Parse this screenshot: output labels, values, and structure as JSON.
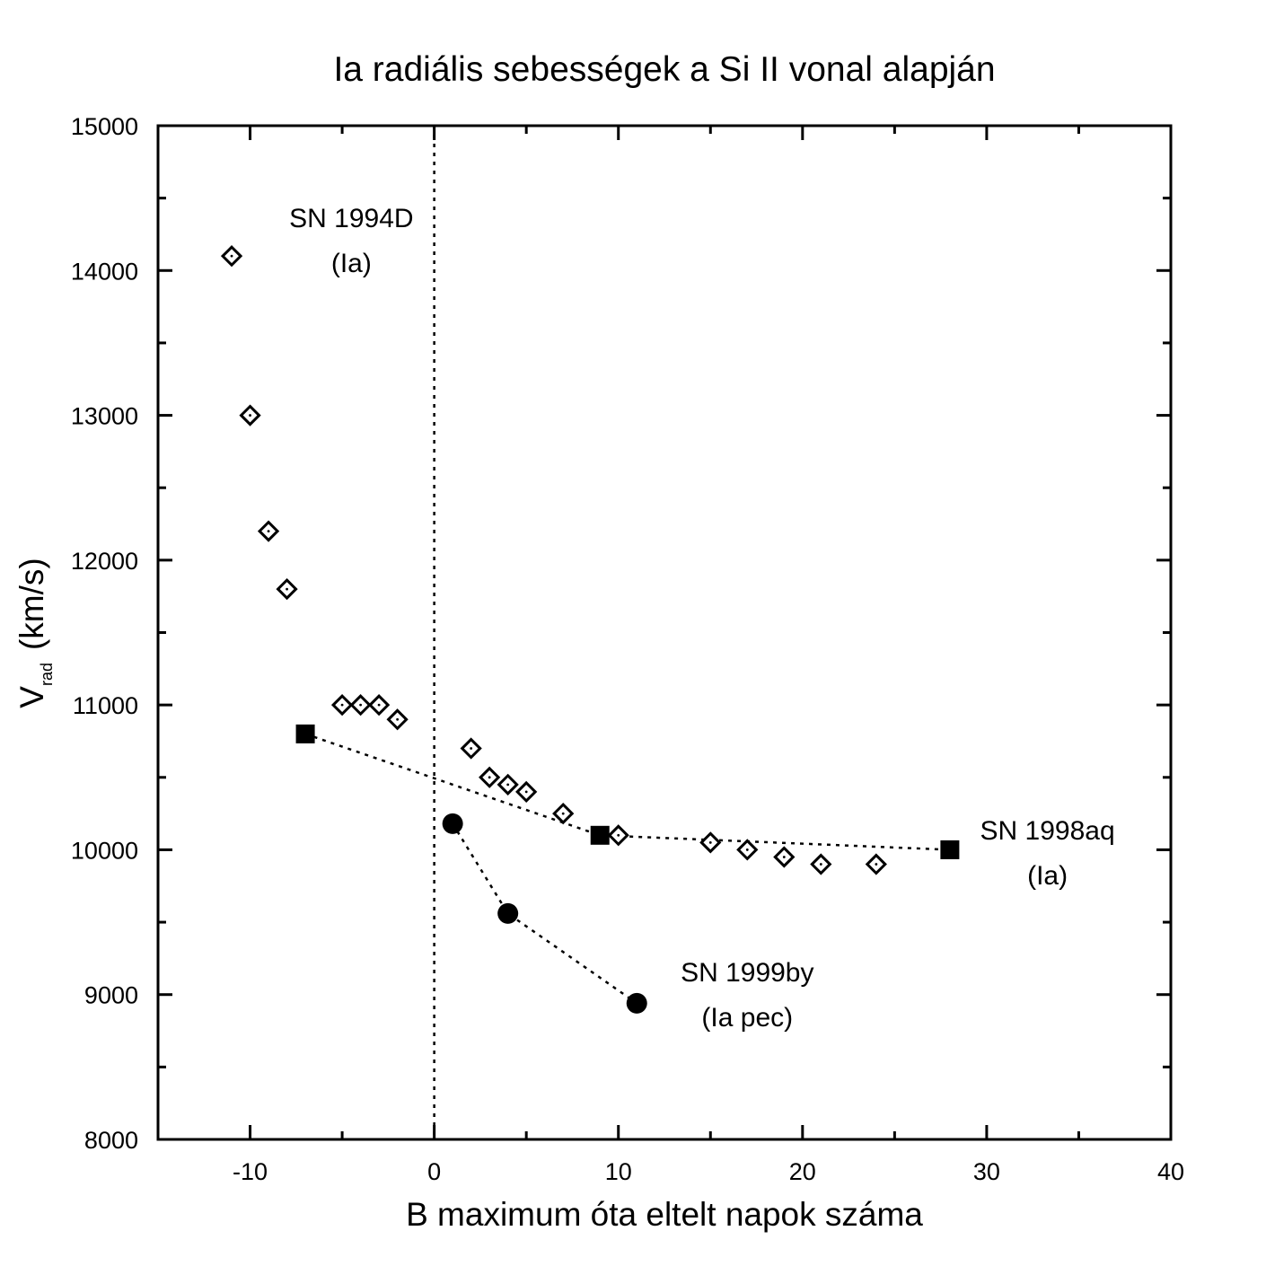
{
  "chart_data": {
    "type": "scatter",
    "title": "Ia radiális sebességek a Si II vonal alapján",
    "xlabel": "B maximum óta eltelt napok száma",
    "ylabel": {
      "main": "V",
      "subscript": "rad",
      "unit": "(km/s)"
    },
    "xlim": [
      -15,
      40
    ],
    "ylim": [
      8000,
      15000
    ],
    "xticks": [
      -10,
      0,
      10,
      20,
      30,
      40
    ],
    "yticks": [
      8000,
      9000,
      10000,
      11000,
      12000,
      13000,
      14000,
      15000
    ],
    "x_tick_labels": [
      "-10",
      "0",
      "10",
      "20",
      "30",
      "40"
    ],
    "y_tick_labels": [
      "8000",
      "9000",
      "10000",
      "11000",
      "12000",
      "13000",
      "14000",
      "15000"
    ],
    "reference_line": {
      "x": 0,
      "style": "dotted"
    },
    "grid": false,
    "series": [
      {
        "marker": "open-diamond",
        "connected": false,
        "points": [
          {
            "x": -11,
            "y": 14100
          },
          {
            "x": -10,
            "y": 13000
          },
          {
            "x": -9,
            "y": 12200
          },
          {
            "x": -8,
            "y": 11800
          },
          {
            "x": -5,
            "y": 11000
          },
          {
            "x": -4,
            "y": 11000
          },
          {
            "x": -3,
            "y": 11000
          },
          {
            "x": -2,
            "y": 10900
          },
          {
            "x": 2,
            "y": 10700
          },
          {
            "x": 3,
            "y": 10500
          },
          {
            "x": 4,
            "y": 10450
          },
          {
            "x": 5,
            "y": 10400
          },
          {
            "x": 7,
            "y": 10250
          },
          {
            "x": 10,
            "y": 10100
          },
          {
            "x": 15,
            "y": 10050
          },
          {
            "x": 17,
            "y": 10000
          },
          {
            "x": 19,
            "y": 9950
          },
          {
            "x": 21,
            "y": 9900
          },
          {
            "x": 24,
            "y": 9900
          }
        ]
      },
      {
        "marker": "filled-square",
        "connected": true,
        "points": [
          {
            "x": -7,
            "y": 10800
          },
          {
            "x": 9,
            "y": 10100
          },
          {
            "x": 28,
            "y": 10000
          }
        ]
      },
      {
        "marker": "filled-circle",
        "connected": true,
        "points": [
          {
            "x": 1,
            "y": 10180
          },
          {
            "x": 4,
            "y": 9560
          },
          {
            "x": 11,
            "y": 8940
          }
        ]
      }
    ],
    "annotations": [
      {
        "lines": [
          "SN 1994D",
          "(Ia)"
        ],
        "x": -4.5,
        "y": 14300
      },
      {
        "lines": [
          "SN 1998aq",
          "(Ia)"
        ],
        "x": 33.3,
        "y": 10070
      },
      {
        "lines": [
          "SN 1999by",
          "(Ia pec)"
        ],
        "x": 17,
        "y": 9090
      }
    ]
  }
}
